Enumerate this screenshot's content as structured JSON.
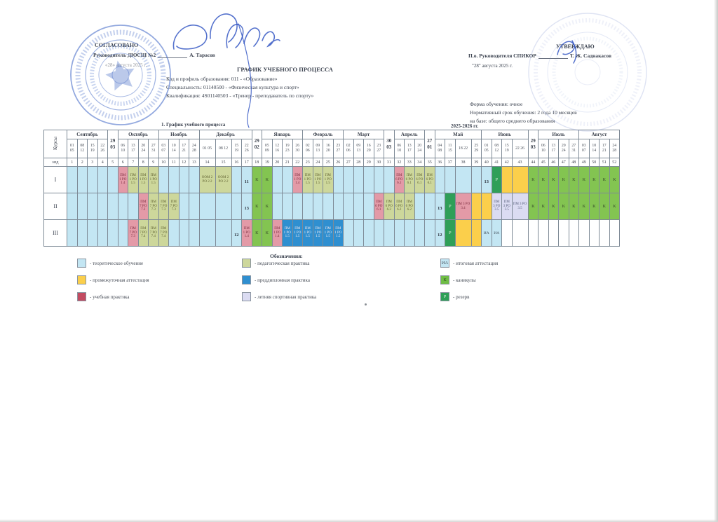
{
  "approval_left": {
    "title": "СОГЛАСОВАНО",
    "role": "Руководитель ДЮСШ №2",
    "name": "А. Тарасов",
    "date": "«28» августа 2025 г."
  },
  "approval_right": {
    "title": "УТВЕРЖДАЮ",
    "role": "П.о. Руководителя СПИКОР",
    "name": "Т. Ж. Саднакасов",
    "date": "\"28\" августа 2025 г."
  },
  "doc": {
    "title": "ГРАФИК УЧЕБНОГО ПРОЦЕССА",
    "line1": "Код и профиль образования: 011 - «Образование»",
    "line2": "Специальность: 01140500 - «Физическая культура и спорт»",
    "line3": "Квалификация: 4S01140503 - «Тренер - преподаватель по спорту»",
    "form1": "Форма обучения: очное",
    "form2": "Нормативный срок обучения: 2 года 10 месяцев",
    "form3": "на базе: общего среднего образования",
    "caption": "1. График учебного процесса",
    "years": "2025-2026 гг."
  },
  "table": {
    "courses_header": "Курсы",
    "week_row_label": "нед",
    "week_start": 1,
    "week_end": 52,
    "marks": {
      "K": "К",
      "R": "Р",
      "IA": "ИА"
    },
    "header_groups": [
      {
        "month": "Сентябрь",
        "cols": [
          [
            "01",
            "05"
          ],
          [
            "08",
            "12"
          ],
          [
            "15",
            "19"
          ],
          [
            "22",
            "26"
          ]
        ]
      },
      {
        "month": null,
        "cols": [
          [
            "29",
            "03"
          ]
        ]
      },
      {
        "month": "Октябрь",
        "cols": [
          [
            "06",
            "10"
          ],
          [
            "13",
            "17"
          ],
          [
            "20",
            "24"
          ],
          [
            "27",
            "31"
          ]
        ]
      },
      {
        "month": "Ноябрь",
        "cols": [
          [
            "03",
            "07"
          ],
          [
            "10",
            "14"
          ],
          [
            "17",
            "21"
          ],
          [
            "24",
            "28"
          ]
        ]
      },
      {
        "month": "Декабрь",
        "cols": [
          [
            "01 05"
          ],
          [
            "08 12"
          ],
          [
            "15",
            "19"
          ],
          [
            "22",
            "26"
          ]
        ]
      },
      {
        "month": null,
        "cols": [
          [
            "29",
            "02"
          ]
        ]
      },
      {
        "month": "Январь",
        "cols": [
          [
            "05",
            "09"
          ],
          [
            "12",
            "16"
          ],
          [
            "19",
            "23"
          ],
          [
            "26",
            "30"
          ]
        ]
      },
      {
        "month": "Февраль",
        "cols": [
          [
            "02",
            "06"
          ],
          [
            "09",
            "13"
          ],
          [
            "16",
            "20"
          ],
          [
            "23",
            "27"
          ]
        ]
      },
      {
        "month": "Март",
        "cols": [
          [
            "02",
            "06"
          ],
          [
            "09",
            "13"
          ],
          [
            "16",
            "20"
          ],
          [
            "23",
            "27"
          ]
        ]
      },
      {
        "month": null,
        "cols": [
          [
            "30",
            "03"
          ]
        ]
      },
      {
        "month": "Апрель",
        "cols": [
          [
            "06",
            "10"
          ],
          [
            "13",
            "17"
          ],
          [
            "20",
            "24"
          ]
        ]
      },
      {
        "month": null,
        "cols": [
          [
            "27",
            "01"
          ]
        ]
      },
      {
        "month": "Май",
        "cols": [
          [
            "04",
            "08"
          ],
          [
            "11",
            "15"
          ],
          [
            "18 22"
          ],
          [
            "25",
            "29"
          ]
        ]
      },
      {
        "month": "Июнь",
        "cols": [
          [
            "01",
            "05"
          ],
          [
            "08",
            "12"
          ],
          [
            "15",
            "19"
          ],
          [
            "22 26"
          ]
        ]
      },
      {
        "month": null,
        "cols": [
          [
            "29",
            "03"
          ]
        ]
      },
      {
        "month": "Июль",
        "cols": [
          [
            "06",
            "10"
          ],
          [
            "13",
            "17"
          ],
          [
            "20",
            "24"
          ],
          [
            "27",
            "31"
          ]
        ]
      },
      {
        "month": "Август",
        "cols": [
          [
            "03",
            "07"
          ],
          [
            "10",
            "14"
          ],
          [
            "17",
            "21"
          ],
          [
            "24",
            "28"
          ]
        ]
      }
    ],
    "courses": [
      {
        "label": "I",
        "cells": [
          [
            "T"
          ],
          [
            "T"
          ],
          [
            "T"
          ],
          [
            "T"
          ],
          [
            "T"
          ],
          [
            "UP",
            "ПМ 1 РО 1.4"
          ],
          [
            "PP",
            "ПМ 1 РО 1.5"
          ],
          [
            "PP",
            "ПМ 1 РО 1.5"
          ],
          [
            "PP",
            "ПМ 1 РО 1.5"
          ],
          [
            "T"
          ],
          [
            "T"
          ],
          [
            "T"
          ],
          [
            "T"
          ],
          [
            "PP",
            "ООМ 2 РО 2.2"
          ],
          [
            "PP",
            "ООМ 2 РО 2.2"
          ],
          [
            "T"
          ],
          [
            "T",
            "11"
          ],
          [
            "K"
          ],
          [
            "K"
          ],
          [
            "T"
          ],
          [
            "T"
          ],
          [
            "UP",
            "ПМ 1 РО 1.4"
          ],
          [
            "PP",
            "ПМ 1 РО 1.5"
          ],
          [
            "PP",
            "ПМ 1 РО 1.5"
          ],
          [
            "PP",
            "ПМ 1 РО 1.5"
          ],
          [
            "T"
          ],
          [
            "T"
          ],
          [
            "T"
          ],
          [
            "T"
          ],
          [
            "T"
          ],
          [
            "T"
          ],
          [
            "UP",
            "ПМ 6 РО 6.1"
          ],
          [
            "PP",
            "ПМ 6 РО 6.1"
          ],
          [
            "PP",
            "ПМ 6 РО 6.1"
          ],
          [
            "PP",
            "ПМ 6 РО 6.1"
          ],
          [
            "T"
          ],
          [
            "T"
          ],
          [
            "T"
          ],
          [
            "T"
          ],
          [
            "T",
            "13"
          ],
          [
            "R"
          ],
          [
            "A"
          ],
          [
            "A"
          ],
          [
            "K"
          ],
          [
            "K"
          ],
          [
            "K"
          ],
          [
            "K"
          ],
          [
            "K"
          ],
          [
            "K"
          ],
          [
            "K"
          ],
          [
            "K"
          ],
          [
            "K"
          ]
        ]
      },
      {
        "label": "II",
        "cells": [
          [
            "T"
          ],
          [
            "T"
          ],
          [
            "T"
          ],
          [
            "T"
          ],
          [
            "T"
          ],
          [
            "T"
          ],
          [
            "T"
          ],
          [
            "UP",
            "ПМ 7 РО 7.2"
          ],
          [
            "PP",
            "ПМ 7 РО 7.3"
          ],
          [
            "PP",
            "ПМ 7 РО 7.3"
          ],
          [
            "PP",
            "ПМ 7 РО 7.3"
          ],
          [
            "T"
          ],
          [
            "T"
          ],
          [
            "T"
          ],
          [
            "T"
          ],
          [
            "T"
          ],
          [
            "T",
            "13"
          ],
          [
            "K"
          ],
          [
            "K"
          ],
          [
            "T"
          ],
          [
            "T"
          ],
          [
            "T"
          ],
          [
            "T"
          ],
          [
            "T"
          ],
          [
            "T"
          ],
          [
            "T"
          ],
          [
            "T"
          ],
          [
            "T"
          ],
          [
            "T"
          ],
          [
            "UP",
            "ПМ 6 РО 6.1"
          ],
          [
            "PP",
            "ПМ 6 РО 6.2"
          ],
          [
            "PP",
            "ПМ 6 РО 6.2"
          ],
          [
            "PP",
            "ПМ 6 РО 6.2"
          ],
          [
            "T"
          ],
          [
            "T"
          ],
          [
            "T",
            "13"
          ],
          [
            "R"
          ],
          [
            "UP",
            "ПМ 3 РО 3.4"
          ],
          [
            "A"
          ],
          [
            "A"
          ],
          [
            "LS",
            "ПМ 3 РО 3.5"
          ],
          [
            "LS",
            "ПМ 3 РО 3.5"
          ],
          [
            "LS",
            "ПМ 3 РО 3.5"
          ],
          [
            "K"
          ],
          [
            "K"
          ],
          [
            "K"
          ],
          [
            "K"
          ],
          [
            "K"
          ],
          [
            "K"
          ],
          [
            "K"
          ],
          [
            "K"
          ],
          [
            "K"
          ]
        ]
      },
      {
        "label": "III",
        "cells": [
          [
            "T"
          ],
          [
            "T"
          ],
          [
            "T"
          ],
          [
            "T"
          ],
          [
            "T"
          ],
          [
            "T"
          ],
          [
            "UP",
            "ПМ 7 РО 7.3"
          ],
          [
            "PP",
            "ПМ 7 РО 7.4"
          ],
          [
            "PP",
            "ПМ 7 РО 7.4"
          ],
          [
            "PP",
            "ПМ 7 РО 7.4"
          ],
          [
            "T"
          ],
          [
            "T"
          ],
          [
            "T"
          ],
          [
            "T"
          ],
          [
            "T"
          ],
          [
            "T",
            "12"
          ],
          [
            "UP",
            "ПМ 1 РО 1.4"
          ],
          [
            "K"
          ],
          [
            "K"
          ],
          [
            "UP",
            "ПМ 1 РО 1.4"
          ],
          [
            "PD",
            "ПМ 1 РО 1.5"
          ],
          [
            "PD",
            "ПМ 1 РО 1.5"
          ],
          [
            "PD",
            "ПМ 1 РО 1.5"
          ],
          [
            "PD",
            "ПМ 1 РО 1.5"
          ],
          [
            "PD",
            "ПМ 1 РО 1.5"
          ],
          [
            "PD",
            "ПМ 1 РО 1.5"
          ],
          [
            "T"
          ],
          [
            "T"
          ],
          [
            "T"
          ],
          [
            "T"
          ],
          [
            "T"
          ],
          [
            "T"
          ],
          [
            "T"
          ],
          [
            "T"
          ],
          [
            "T"
          ],
          [
            "T",
            "12"
          ],
          [
            "R"
          ],
          [
            "A"
          ],
          [
            "A"
          ],
          [
            "IA"
          ],
          [
            "IA"
          ],
          [
            "E"
          ],
          [
            "E"
          ],
          [
            "E"
          ],
          [
            "E"
          ],
          [
            "E"
          ],
          [
            "E"
          ],
          [
            "E"
          ],
          [
            "E"
          ],
          [
            "E"
          ],
          [
            "E"
          ],
          [
            "E"
          ]
        ]
      }
    ]
  },
  "legend": {
    "title": "Обозначения:",
    "items": [
      {
        "swatch": "T",
        "mark": "",
        "label": "- теоретическое обучение"
      },
      {
        "swatch": "A",
        "mark": "",
        "label": "- промежуточная аттестация"
      },
      {
        "swatch": "UPL",
        "mark": "",
        "label": "- учебная практика"
      },
      {
        "swatch": "PP",
        "mark": "",
        "label": "- педагогическая практика"
      },
      {
        "swatch": "PD",
        "mark": "",
        "label": "- преддипломная практика"
      },
      {
        "swatch": "LS",
        "mark": "",
        "label": "- летняя спортивная практика"
      },
      {
        "swatch": "IA",
        "mark": "ИА",
        "label": "- итоговая  аттестация"
      },
      {
        "swatch": "K",
        "mark": "К",
        "label": "- каникулы"
      },
      {
        "swatch": "R",
        "mark": "Р",
        "label": "- резерв"
      }
    ]
  },
  "colors": {
    "theory": "#c3e6f3",
    "pedagog_practice": "#cdd79b",
    "uchebnaya_cell": "#e39aa7",
    "uchebnaya_legend": "#c34b61",
    "preddiplom": "#2f8fd0",
    "letnyaya": "#dbdcf2",
    "attestation": "#fbcf4b",
    "kanikuly": "#83c451",
    "rezerv": "#2f9f58",
    "ink": "#2a4fc0"
  }
}
